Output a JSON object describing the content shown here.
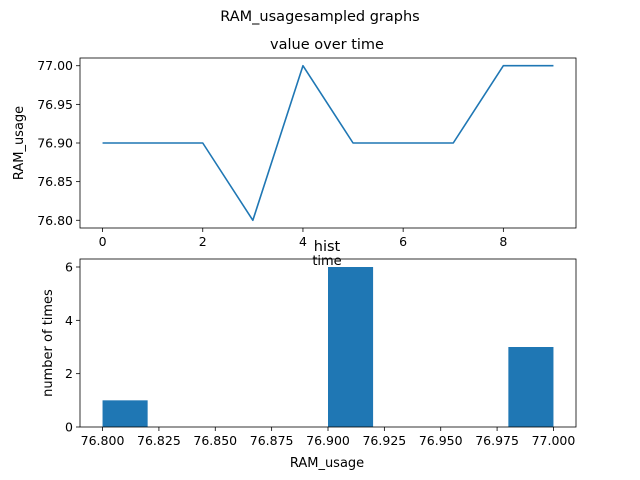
{
  "figure": {
    "suptitle": "RAM_usagesampled graphs"
  },
  "chart_data": [
    {
      "type": "line",
      "title": "value over time",
      "xlabel": "time",
      "ylabel": "RAM_usage",
      "x": [
        0,
        1,
        2,
        3,
        4,
        5,
        6,
        7,
        8,
        9
      ],
      "series": [
        {
          "values": [
            76.9,
            76.9,
            76.9,
            76.8,
            77.0,
            76.9,
            76.9,
            76.9,
            77.0,
            77.0
          ]
        }
      ],
      "xlim": [
        -0.45,
        9.45
      ],
      "ylim": [
        76.79,
        77.01
      ],
      "xticks": [
        0,
        2,
        4,
        6,
        8
      ],
      "xtick_labels": [
        "0",
        "2",
        "4",
        "6",
        "8"
      ],
      "yticks": [
        76.8,
        76.85,
        76.9,
        76.95,
        77.0
      ],
      "ytick_labels": [
        "76.80",
        "76.85",
        "76.90",
        "76.95",
        "77.00"
      ],
      "grid": false,
      "color": "#1f77b4"
    },
    {
      "type": "bar",
      "title": "hist",
      "xlabel": "RAM_usage",
      "ylabel": "number of times",
      "bin_edges": [
        76.8,
        76.82,
        76.84,
        76.86,
        76.88,
        76.9,
        76.92,
        76.94,
        76.96,
        76.98,
        77.0
      ],
      "values": [
        1,
        0,
        0,
        0,
        0,
        6,
        0,
        0,
        0,
        3
      ],
      "xlim": [
        76.79,
        77.01
      ],
      "ylim": [
        0,
        6.3
      ],
      "xticks": [
        76.8,
        76.825,
        76.85,
        76.875,
        76.9,
        76.925,
        76.95,
        76.975,
        77.0
      ],
      "xtick_labels": [
        "76.800",
        "76.825",
        "76.850",
        "76.875",
        "76.900",
        "76.925",
        "76.950",
        "76.975",
        "77.000"
      ],
      "yticks": [
        0,
        2,
        4,
        6
      ],
      "ytick_labels": [
        "0",
        "2",
        "4",
        "6"
      ],
      "grid": false,
      "color": "#1f77b4"
    }
  ]
}
